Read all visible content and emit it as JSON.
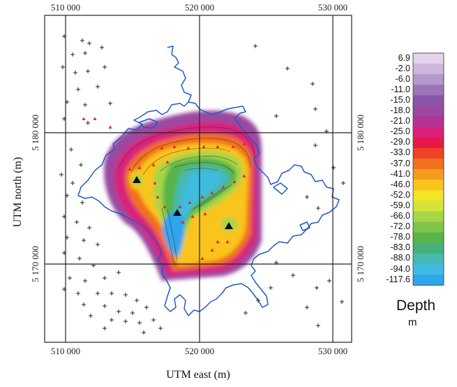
{
  "axes": {
    "x_title": "UTM east (m)",
    "y_title": "UTM north (m)",
    "x_ticks": [
      "510 000",
      "520 000",
      "530 000"
    ],
    "y_ticks": [
      "5 180 000",
      "5 170 000"
    ]
  },
  "legend": {
    "title": "Depth",
    "unit": "m",
    "values": [
      "6.9",
      "-2.0",
      "-6.0",
      "-11.0",
      "-15.0",
      "-18.0",
      "-21.0",
      "-25.0",
      "-29.0",
      "-33.0",
      "-37.0",
      "-41.0",
      "-46.0",
      "-52.0",
      "-59.0",
      "-66.0",
      "-72.0",
      "-78.0",
      "-83.0",
      "-88.0",
      "-94.0",
      "-117.6"
    ],
    "colors": [
      "#e4d3ea",
      "#cdb6dc",
      "#b497cb",
      "#9d74b8",
      "#8a56aa",
      "#9a4aa0",
      "#b43496",
      "#d9207a",
      "#e8184a",
      "#ee4324",
      "#f2701e",
      "#f59a1c",
      "#f9c41e",
      "#f6e226",
      "#d6e43a",
      "#a8d545",
      "#7ec448",
      "#57b44a",
      "#45b07a",
      "#45b9b0",
      "#3fbbe0",
      "#2fa6ec"
    ]
  },
  "map": {
    "x_range": [
      507000,
      533000
    ],
    "y_range": [
      5164000,
      5188000
    ],
    "grid_x": [
      510000,
      520000,
      530000
    ],
    "grid_y": [
      5170000,
      5180000
    ],
    "colors": {
      "shoreline": "#1f5bbf",
      "sounding_marker": "#e8281e",
      "station_marker": "#222222"
    }
  }
}
